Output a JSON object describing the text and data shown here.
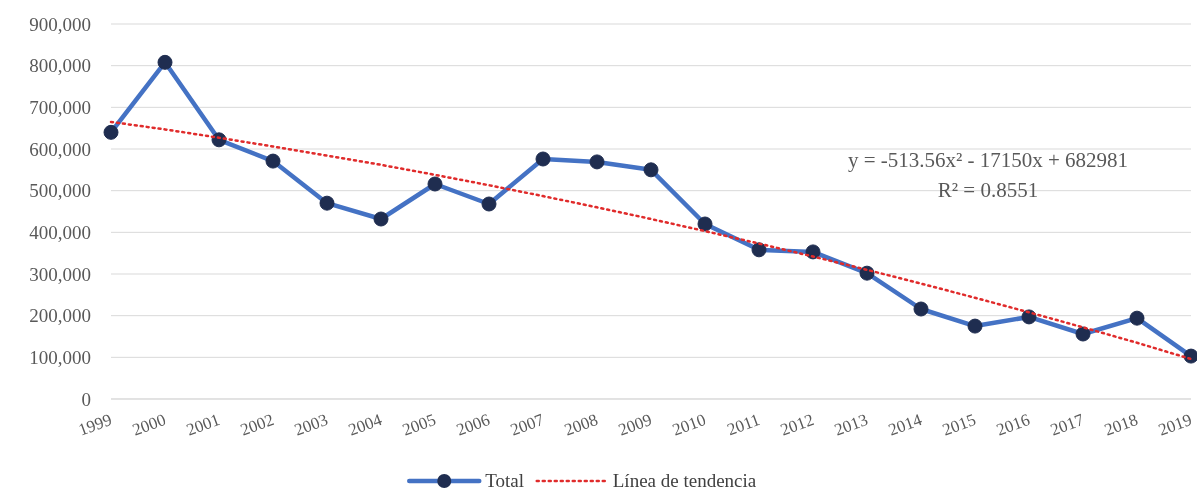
{
  "chart_data": {
    "type": "line",
    "categories": [
      "1999",
      "2000",
      "2001",
      "2002",
      "2003",
      "2004",
      "2005",
      "2006",
      "2007",
      "2008",
      "2009",
      "2010",
      "2011",
      "2012",
      "2013",
      "2014",
      "2015",
      "2016",
      "2017",
      "2018",
      "2019"
    ],
    "series": [
      {
        "name": "Total",
        "color": "#4472c4",
        "marker": "circle",
        "line_style": "solid",
        "values": [
          640000,
          808000,
          622000,
          571000,
          470000,
          432000,
          516000,
          468000,
          576000,
          569000,
          550000,
          420000,
          358000,
          353000,
          302000,
          216000,
          175000,
          197000,
          156000,
          194000,
          103000
        ]
      },
      {
        "name": "Línea de tendencia",
        "type": "line",
        "color": "#e02b2b",
        "marker": "none",
        "line_style": "dotted",
        "values": [
          665000,
          647000,
          627000,
          606000,
          584000,
          562000,
          538000,
          513000,
          487000,
          460000,
          432000,
          403000,
          373000,
          342000,
          310000,
          277000,
          243000,
          208000,
          172000,
          135000,
          96000
        ]
      }
    ],
    "ylim": [
      0,
      900000
    ],
    "yticks": [
      {
        "value": 0,
        "label": "0"
      },
      {
        "value": 100000,
        "label": "100,000"
      },
      {
        "value": 200000,
        "label": "200,000"
      },
      {
        "value": 300000,
        "label": "300,000"
      },
      {
        "value": 400000,
        "label": "400,000"
      },
      {
        "value": 500000,
        "label": "500,000"
      },
      {
        "value": 600000,
        "label": "600,000"
      },
      {
        "value": 700000,
        "label": "700,000"
      },
      {
        "value": 800000,
        "label": "800,000"
      },
      {
        "value": 900000,
        "label": "900,000"
      }
    ],
    "grid": "y",
    "legend": "bottom",
    "annotations": [
      "y = -513.56x² - 17150x + 682981",
      "R² = 0.8551"
    ]
  }
}
